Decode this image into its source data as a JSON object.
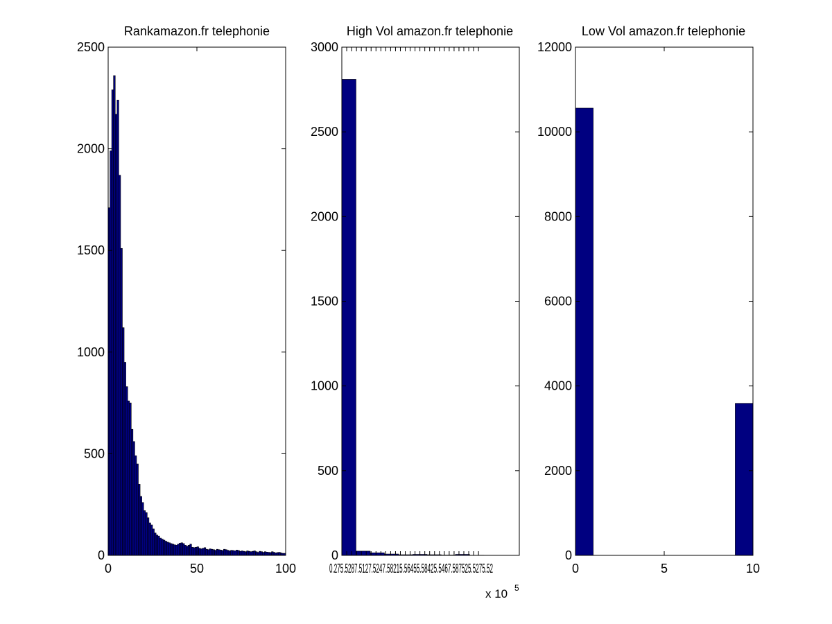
{
  "chart_data": [
    {
      "type": "bar",
      "title": "Rankamazon.fr telephonie",
      "xlim": [
        0,
        100
      ],
      "ylim": [
        0,
        2500
      ],
      "xticks": [
        "0",
        "50",
        "100"
      ],
      "yticks": [
        "0",
        "500",
        "1000",
        "1500",
        "2000",
        "2500"
      ],
      "bar_color": "#000080",
      "bin_width": 1,
      "values": [
        1710,
        1990,
        2290,
        2360,
        2170,
        2240,
        1870,
        1510,
        1120,
        950,
        830,
        760,
        750,
        620,
        560,
        490,
        450,
        350,
        290,
        260,
        220,
        210,
        185,
        160,
        150,
        130,
        110,
        100,
        95,
        85,
        80,
        75,
        70,
        65,
        62,
        58,
        55,
        52,
        50,
        55,
        60,
        62,
        58,
        50,
        45,
        50,
        55,
        40,
        38,
        40,
        42,
        35,
        32,
        35,
        38,
        30,
        28,
        32,
        30,
        28,
        25,
        30,
        28,
        26,
        24,
        30,
        28,
        25,
        22,
        25,
        24,
        22,
        26,
        24,
        20,
        22,
        20,
        18,
        22,
        20,
        18,
        20,
        22,
        18,
        15,
        20,
        18,
        15,
        18,
        16,
        15,
        14,
        18,
        15,
        12,
        14,
        15,
        12,
        10,
        10
      ]
    },
    {
      "type": "bar",
      "title": "High Vol amazon.fr telephonie",
      "xlim": [
        0,
        10
      ],
      "ylim": [
        0,
        3000
      ],
      "xtick_values": [
        0,
        0.275,
        0.55,
        0.825,
        1.1,
        1.375,
        1.65,
        1.925,
        2.2,
        2.475,
        2.75,
        3.025,
        3.3,
        3.575,
        3.85,
        4.125,
        4.4,
        4.675,
        4.95,
        5.225,
        5.5,
        5.775,
        6.05,
        6.325,
        6.6,
        6.875,
        7.15,
        7.425,
        7.7
      ],
      "xtick_labels_rendered": "0.275.5287.5127.5247.58215.56455.58425.5467.587525.5275.52",
      "yticks": [
        "0",
        "500",
        "1000",
        "1500",
        "2000",
        "2500",
        "3000"
      ],
      "x_exponent_base": "x 10",
      "x_exponent_power": "5",
      "bar_color": "#000080",
      "bin_edges": [
        0,
        0.8,
        1.6,
        2.4,
        3.2,
        4.0,
        4.8,
        5.6,
        6.4,
        7.2,
        8.0
      ],
      "values": [
        2810,
        25,
        15,
        8,
        4,
        6,
        4,
        2,
        6,
        1
      ]
    },
    {
      "type": "bar",
      "title": "Low Vol amazon.fr telephonie",
      "xlim": [
        0,
        10
      ],
      "ylim": [
        0,
        12000
      ],
      "xticks": [
        "0",
        "5",
        "10"
      ],
      "yticks": [
        "0",
        "2000",
        "4000",
        "6000",
        "8000",
        "10000",
        "12000"
      ],
      "bar_color": "#000080",
      "bin_edges": [
        0,
        1,
        2,
        3,
        4,
        5,
        6,
        7,
        8,
        9,
        10
      ],
      "values": [
        10560,
        0,
        0,
        0,
        0,
        0,
        0,
        0,
        0,
        3590
      ]
    }
  ]
}
